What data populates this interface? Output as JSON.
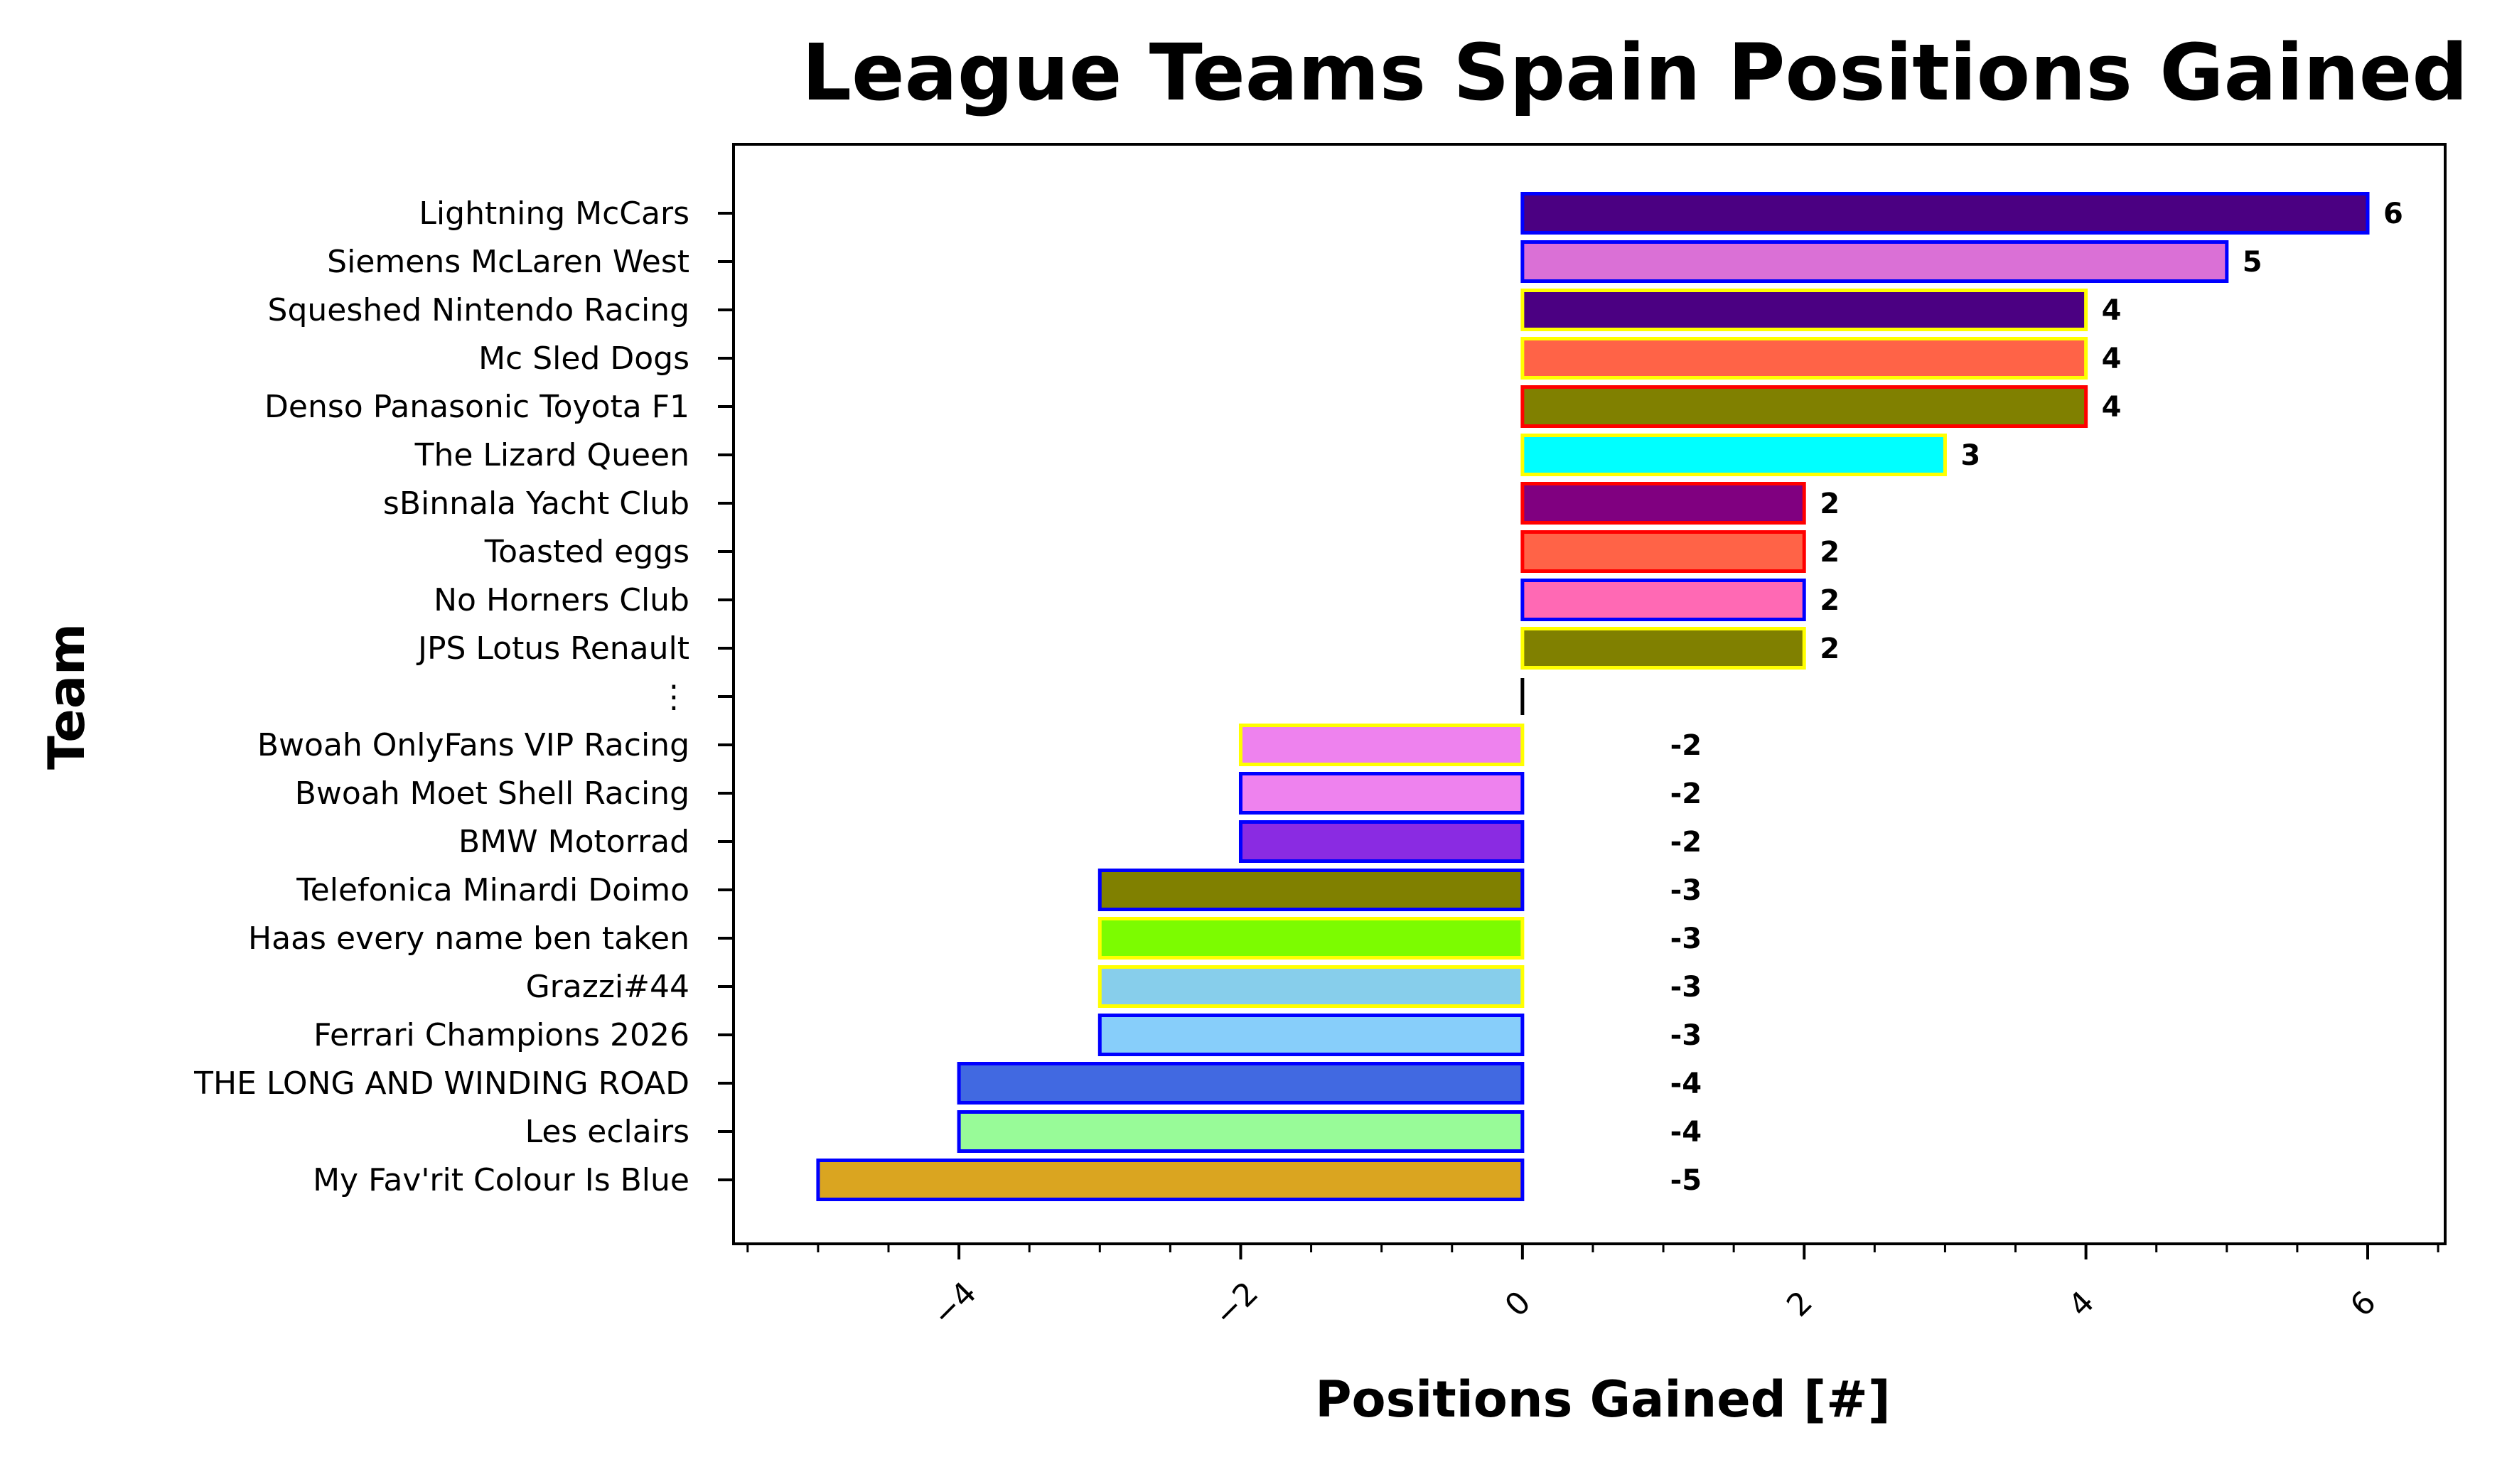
{
  "chart_data": {
    "type": "bar",
    "orientation": "horizontal",
    "title": "League Teams Spain Positions Gained",
    "xlabel": "Positions Gained [#]",
    "ylabel": "Team",
    "xlim": [
      -5.6,
      6.55
    ],
    "xticks": [
      -4,
      -2,
      0,
      2,
      4,
      6
    ],
    "xtick_labels": [
      "−4",
      "−2",
      "0",
      "2",
      "4",
      "6"
    ],
    "grid": false,
    "legend": "none",
    "categories": [
      "Lightning McCars",
      "Siemens McLaren West",
      "Squeshed Nintendo Racing",
      "Mc Sled Dogs",
      "Denso Panasonic Toyota F1",
      "The Lizard Queen",
      "sBinnala Yacht Club",
      "Toasted eggs",
      "No Horners Club",
      "JPS Lotus Renault",
      "⋮",
      "Bwoah OnlyFans VIP Racing",
      "Bwoah Moet Shell Racing",
      "BMW Motorrad",
      "Telefonica Minardi Doimo",
      "Haas every name ben taken",
      "Grazzi#44",
      "Ferrari Champions 2026",
      "THE LONG AND WINDING ROAD",
      "Les eclairs",
      "My Fav'rit Colour Is Blue"
    ],
    "values": [
      6,
      5,
      4,
      4,
      4,
      3,
      2,
      2,
      2,
      2,
      null,
      -2,
      -2,
      -2,
      -3,
      -3,
      -3,
      -3,
      -4,
      -4,
      -5
    ],
    "value_labels": [
      "6",
      "5",
      "4",
      "4",
      "4",
      "3",
      "2",
      "2",
      "2",
      "2",
      "",
      "-2",
      "-2",
      "-2",
      "-3",
      "-3",
      "-3",
      "-3",
      "-4",
      "-4",
      "-5"
    ],
    "fill_colors": [
      "#4b0082",
      "#da70d6",
      "#4b0082",
      "#ff6347",
      "#808000",
      "#00ffff",
      "#800080",
      "#ff6347",
      "#ff69b4",
      "#808000",
      "",
      "#ee82ee",
      "#ee82ee",
      "#8a2be2",
      "#808000",
      "#7cfc00",
      "#87ceeb",
      "#87cefa",
      "#4169e1",
      "#98fb98",
      "#daa520"
    ],
    "edge_colors": [
      "#0000ff",
      "#0000ff",
      "#ffff00",
      "#ffff00",
      "#ff0000",
      "#ffff00",
      "#ff0000",
      "#ff0000",
      "#0000ff",
      "#ffff00",
      "",
      "#ffff00",
      "#0000ff",
      "#0000ff",
      "#0000ff",
      "#ffff00",
      "#ffff00",
      "#0000ff",
      "#0000ff",
      "#0000ff",
      "#0000ff"
    ]
  }
}
